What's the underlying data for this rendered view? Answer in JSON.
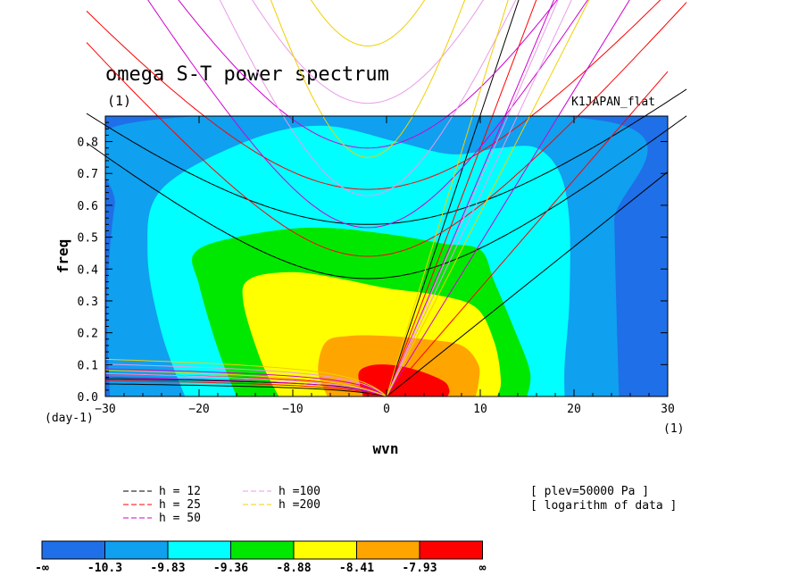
{
  "chart_data": {
    "type": "contour",
    "title": "omega S-T power spectrum",
    "subtitle": "(1)",
    "dataset_label": "K1JAPAN_flat",
    "xlabel": "wvn",
    "ylabel": "freq",
    "x_unit": "(1)",
    "y_unit": "(day-1)",
    "xlim": [
      -30,
      30
    ],
    "ylim": [
      0,
      0.88
    ],
    "xticks": [
      -30,
      -20,
      -10,
      0,
      10,
      20,
      30
    ],
    "yticks": [
      0.0,
      0.1,
      0.2,
      0.3,
      0.4,
      0.5,
      0.6,
      0.7,
      0.8
    ],
    "ytick_labels": [
      "0.0",
      "0.1",
      "0.2",
      "0.3",
      "0.4",
      "0.5",
      "0.6",
      "0.7",
      "0.8"
    ],
    "annotations": [
      "[ plev=50000 Pa ]",
      "[ logarithm of data ]"
    ],
    "colorbar": {
      "labels": [
        "-∞",
        "-10.3",
        "-9.83",
        "-9.36",
        "-8.88",
        "-8.41",
        "-7.93",
        "∞"
      ],
      "colors": [
        "#1f6fe8",
        "#0fa0ef",
        "#00ffff",
        "#00e800",
        "#ffff00",
        "#ffa500",
        "#ff0000"
      ]
    },
    "contour_levels": [
      {
        "level": -10.3,
        "color": "#0fa0ef",
        "points": [
          [
            -29.5,
            0
          ],
          [
            -29.8,
            0.3
          ],
          [
            -29,
            0.6
          ],
          [
            -27,
            0.86
          ],
          [
            24,
            0.86
          ],
          [
            24.3,
            0.55
          ],
          [
            24.5,
            0.3
          ],
          [
            24.8,
            0
          ]
        ]
      },
      {
        "level": -9.83,
        "color": "#00ffff",
        "points": [
          [
            -21.5,
            0
          ],
          [
            -24,
            0.2
          ],
          [
            -25.5,
            0.45
          ],
          [
            -24,
            0.65
          ],
          [
            -15,
            0.8
          ],
          [
            -7,
            0.85
          ],
          [
            1,
            0.8
          ],
          [
            7,
            0.76
          ],
          [
            12,
            0.78
          ],
          [
            16,
            0.78
          ],
          [
            18.5,
            0.7
          ],
          [
            19.5,
            0.55
          ],
          [
            19.5,
            0.3
          ],
          [
            19,
            0.1
          ],
          [
            19,
            0
          ]
        ]
      },
      {
        "level": -9.36,
        "color": "#00e800",
        "points": [
          [
            -16,
            0
          ],
          [
            -18,
            0.15
          ],
          [
            -20,
            0.35
          ],
          [
            -20.5,
            0.45
          ],
          [
            -16,
            0.5
          ],
          [
            -8,
            0.53
          ],
          [
            0,
            0.51
          ],
          [
            6,
            0.48
          ],
          [
            10,
            0.46
          ],
          [
            11.5,
            0.36
          ],
          [
            13.5,
            0.22
          ],
          [
            15.3,
            0.08
          ],
          [
            15,
            0
          ]
        ]
      },
      {
        "level": -8.88,
        "color": "#ffff00",
        "points": [
          [
            -11.5,
            0
          ],
          [
            -13.5,
            0.12
          ],
          [
            -15.3,
            0.3
          ],
          [
            -14.5,
            0.37
          ],
          [
            -10,
            0.39
          ],
          [
            -5,
            0.37
          ],
          [
            0,
            0.34
          ],
          [
            5,
            0.32
          ],
          [
            9.5,
            0.28
          ],
          [
            11.5,
            0.17
          ],
          [
            12.2,
            0.05
          ],
          [
            11.8,
            0
          ]
        ]
      },
      {
        "level": -8.41,
        "color": "#ffa500",
        "points": [
          [
            -6.3,
            0
          ],
          [
            -7.3,
            0.08
          ],
          [
            -6.5,
            0.17
          ],
          [
            -4,
            0.19
          ],
          [
            0,
            0.19
          ],
          [
            4,
            0.18
          ],
          [
            8,
            0.16
          ],
          [
            9.8,
            0.1
          ],
          [
            9.8,
            0.04
          ],
          [
            9.5,
            0
          ]
        ]
      },
      {
        "level": -7.93,
        "color": "#ff0000",
        "points": [
          [
            -2.5,
            0
          ],
          [
            -3,
            0.07
          ],
          [
            -2,
            0.095
          ],
          [
            0,
            0.1
          ],
          [
            3,
            0.085
          ],
          [
            6,
            0.05
          ],
          [
            6.7,
            0.02
          ],
          [
            6.5,
            0
          ]
        ]
      }
    ],
    "dispersion_legend": [
      {
        "label": "h = 12",
        "color": "#000000"
      },
      {
        "label": "h = 25",
        "color": "#ff0000"
      },
      {
        "label": "h = 50",
        "color": "#d000d0"
      },
      {
        "label": "h =100",
        "color": "#e89be8"
      },
      {
        "label": "h =200",
        "color": "#f0d000"
      }
    ],
    "dispersion_curves": [
      {
        "h": 12,
        "color": "#000000",
        "min_freq": 0.37,
        "kelvin_slope": 0.0235,
        "gravity_wave_offsets": [
          0.37,
          0.54
        ],
        "low_freq_max": 0.055
      },
      {
        "h": 25,
        "color": "#ff0000",
        "min_freq": 0.44,
        "kelvin_slope": 0.034,
        "gravity_wave_offsets": [
          0.44,
          0.65
        ],
        "low_freq_max": 0.07
      },
      {
        "h": 50,
        "color": "#d000d0",
        "min_freq": 0.53,
        "kelvin_slope": 0.048,
        "gravity_wave_offsets": [
          0.53,
          0.78
        ],
        "low_freq_max": 0.085
      },
      {
        "h": 100,
        "color": "#e89be8",
        "min_freq": 0.63,
        "kelvin_slope": 0.068,
        "gravity_wave_offsets": [
          0.63,
          0.92
        ],
        "low_freq_max": 0.1
      },
      {
        "h": 200,
        "color": "#f0d000",
        "min_freq": 0.75,
        "kelvin_slope": 0.096,
        "gravity_wave_offsets": [
          0.75,
          1.1
        ],
        "low_freq_max": 0.115
      }
    ]
  }
}
